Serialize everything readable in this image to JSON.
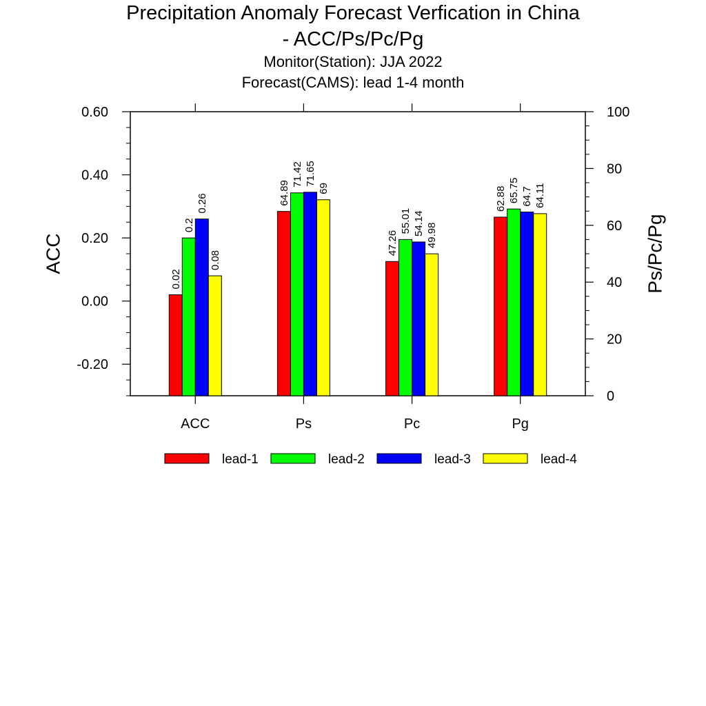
{
  "chart_data": {
    "type": "bar",
    "title": "Precipitation Anomaly Forecast Verfication in China",
    "title_line2": "- ACC/Ps/Pc/Pg",
    "subtitle": [
      "Monitor(Station): JJA 2022",
      "Forecast(CAMS): lead 1-4 month"
    ],
    "ylabel_left": "ACC",
    "ylabel_right": "Ps/Pc/Pg",
    "categories": [
      "ACC",
      "Ps",
      "Pc",
      "Pg"
    ],
    "y_left": {
      "range": [
        -0.3,
        0.6
      ],
      "ticks": [
        "0.60",
        "0.40",
        "0.20",
        "0.00",
        "-0.20"
      ],
      "tick_values": [
        0.6,
        0.4,
        0.2,
        0.0,
        -0.2
      ]
    },
    "y_right": {
      "range": [
        0,
        100
      ],
      "ticks": [
        "100",
        "80",
        "60",
        "40",
        "20",
        "0"
      ],
      "tick_values": [
        100,
        80,
        60,
        40,
        20,
        0
      ]
    },
    "series": [
      {
        "name": "lead-1",
        "color": "#ff0000",
        "values": [
          0.02,
          64.89,
          47.26,
          62.88
        ],
        "labels": [
          "0.02",
          "64.89",
          "47.26",
          "62.88"
        ]
      },
      {
        "name": "lead-2",
        "color": "#00ff00",
        "values": [
          0.2,
          71.42,
          55.01,
          65.75
        ],
        "labels": [
          "0.2",
          "71.42",
          "55.01",
          "65.75"
        ]
      },
      {
        "name": "lead-3",
        "color": "#0000ff",
        "values": [
          0.26,
          71.65,
          54.14,
          64.7
        ],
        "labels": [
          "0.26",
          "71.65",
          "54.14",
          "64.7"
        ]
      },
      {
        "name": "lead-4",
        "color": "#ffff00",
        "values": [
          0.08,
          69,
          49.98,
          64.11
        ],
        "labels": [
          "0.08",
          "69",
          "49.98",
          "64.11"
        ]
      }
    ],
    "legend_position": "bottom",
    "grid": false
  }
}
